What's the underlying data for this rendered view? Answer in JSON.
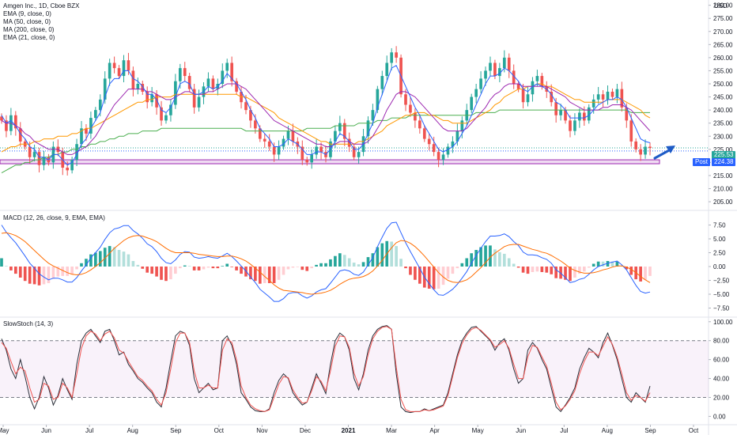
{
  "legend": {
    "main_title": "Amgen Inc., 1D, Cboe BZX",
    "ema9": "EMA (9, close, 0)",
    "ma50": "MA (50, close, 0)",
    "ma200": "MA (200, close, 0)",
    "ema21": "EMA (21, close, 0)",
    "macd": "MACD (12, 26, close, 9, EMA, EMA)",
    "stoch": "SlowStoch (14, 3)"
  },
  "currency": "USD",
  "tags": {
    "last_price": "225.53",
    "post_label": "Post",
    "post_price": "224.38"
  },
  "colors": {
    "up": "#26a69a",
    "down": "#ef5350",
    "ema9": "#2962ff",
    "ma50": "#ff9800",
    "ma200": "#4caf50",
    "ema21": "#9c27b0",
    "zone_fill": "#e1bee7",
    "zone_border": "#9c27b0",
    "arrow": "#1e5bc6"
  },
  "chart_data": {
    "type": "candlestick",
    "x_ticks": [
      "May",
      "Jun",
      "Jul",
      "Aug",
      "Sep",
      "Oct",
      "Nov",
      "Dec",
      "2021",
      "Mar",
      "Apr",
      "May",
      "Jun",
      "Jul",
      "Aug",
      "Sep",
      "Oct"
    ],
    "price_panel": {
      "ylim": [
        202,
        282
      ],
      "y_ticks": [
        205,
        210,
        215,
        220,
        225,
        230,
        235,
        240,
        245,
        250,
        255,
        260,
        265,
        270,
        275,
        280
      ],
      "support_zone": [
        219.5,
        221
      ],
      "last_price": 225.53,
      "post_price": 224.38,
      "closes": [
        236,
        232,
        238,
        233,
        228,
        226,
        222,
        224,
        219,
        222,
        220,
        226,
        224,
        218,
        217,
        221,
        227,
        233,
        231,
        237,
        240,
        244,
        252,
        258,
        256,
        253,
        259,
        255,
        248,
        250,
        247,
        243,
        246,
        241,
        236,
        238,
        242,
        251,
        256,
        253,
        248,
        241,
        245,
        249,
        252,
        248,
        250,
        255,
        258,
        251,
        247,
        243,
        240,
        236,
        233,
        229,
        228,
        226,
        223,
        226,
        229,
        232,
        228,
        226,
        221,
        220,
        223,
        226,
        224,
        222,
        228,
        232,
        235,
        229,
        226,
        222,
        224,
        230,
        236,
        240,
        248,
        253,
        258,
        262,
        260,
        246,
        242,
        239,
        236,
        233,
        229,
        227,
        224,
        221,
        223,
        226,
        228,
        232,
        236,
        240,
        245,
        248,
        252,
        255,
        258,
        253,
        256,
        260,
        255,
        250,
        248,
        243,
        246,
        251,
        253,
        249,
        247,
        243,
        238,
        240,
        236,
        232,
        236,
        239,
        236,
        241,
        244,
        246,
        244,
        247,
        245,
        248,
        241,
        236,
        228,
        225,
        223,
        226,
        225.53
      ],
      "ema9": [
        238,
        235,
        236,
        234,
        231,
        229,
        226,
        225,
        222,
        222,
        221,
        223,
        223,
        221,
        219,
        220,
        223,
        227,
        229,
        233,
        236,
        239,
        245,
        250,
        252,
        252,
        255,
        255,
        252,
        251,
        249,
        246,
        246,
        244,
        240,
        239,
        241,
        245,
        250,
        251,
        250,
        246,
        246,
        247,
        249,
        248,
        249,
        251,
        254,
        252,
        250,
        247,
        244,
        240,
        237,
        233,
        231,
        229,
        226,
        226,
        227,
        229,
        228,
        227,
        225,
        223,
        223,
        224,
        224,
        223,
        225,
        228,
        231,
        230,
        228,
        225,
        225,
        227,
        231,
        235,
        241,
        246,
        251,
        256,
        257,
        253,
        249,
        245,
        241,
        238,
        234,
        231,
        228,
        225,
        224,
        225,
        226,
        228,
        231,
        234,
        238,
        242,
        246,
        250,
        253,
        253,
        254,
        256,
        255,
        253,
        251,
        248,
        247,
        249,
        250,
        249,
        248,
        246,
        243,
        242,
        240,
        237,
        237,
        237,
        237,
        238,
        240,
        242,
        243,
        244,
        244,
        245,
        244,
        241,
        237,
        233,
        229,
        228,
        227.5
      ],
      "ema21": [
        236,
        235,
        235,
        234,
        233,
        231,
        230,
        228,
        227,
        226,
        225,
        225,
        225,
        224,
        223,
        223,
        224,
        225,
        226,
        228,
        230,
        233,
        236,
        239,
        242,
        244,
        246,
        248,
        248,
        248,
        248,
        247,
        247,
        246,
        245,
        244,
        244,
        245,
        246,
        247,
        247,
        246,
        246,
        246,
        247,
        247,
        248,
        249,
        250,
        250,
        250,
        249,
        248,
        246,
        244,
        242,
        240,
        238,
        236,
        235,
        234,
        233,
        232,
        231,
        230,
        229,
        228,
        227,
        227,
        226,
        226,
        227,
        228,
        228,
        228,
        227,
        227,
        227,
        228,
        230,
        233,
        236,
        240,
        243,
        246,
        247,
        247,
        246,
        245,
        243,
        241,
        239,
        237,
        235,
        233,
        232,
        232,
        232,
        232,
        233,
        235,
        237,
        239,
        241,
        244,
        246,
        247,
        249,
        250,
        250,
        250,
        249,
        249,
        249,
        249,
        249,
        249,
        248,
        247,
        246,
        245,
        243,
        242,
        241,
        240,
        240,
        240,
        240,
        241,
        241,
        242,
        242,
        242,
        241,
        240,
        238,
        236,
        234,
        232
      ],
      "ma50": [
        224,
        225,
        226,
        226,
        227,
        227,
        227,
        228,
        228,
        229,
        229,
        229,
        230,
        230,
        230,
        231,
        231,
        232,
        233,
        233,
        234,
        235,
        236,
        237,
        238,
        239,
        240,
        241,
        242,
        243,
        243,
        244,
        244,
        245,
        245,
        245,
        245,
        246,
        246,
        246,
        246,
        246,
        246,
        246,
        246,
        246,
        246,
        246,
        246,
        246,
        246,
        245,
        245,
        244,
        243,
        242,
        241,
        240,
        239,
        237,
        236,
        235,
        234,
        233,
        232,
        231,
        230,
        229,
        228,
        228,
        227,
        227,
        227,
        227,
        227,
        227,
        228,
        228,
        229,
        230,
        231,
        232,
        234,
        235,
        236,
        237,
        238,
        238,
        239,
        239,
        239,
        238,
        238,
        237,
        236,
        236,
        235,
        235,
        235,
        235,
        236,
        237,
        238,
        239,
        240,
        242,
        243,
        245,
        246,
        247,
        248,
        248,
        249,
        249,
        250,
        250,
        249,
        249,
        248,
        247,
        246,
        245,
        244,
        244,
        243,
        243,
        243,
        243,
        243,
        244,
        244,
        244,
        244,
        243,
        242,
        241,
        240,
        238,
        237
      ],
      "ma200": [
        216,
        217,
        218,
        219,
        219,
        220,
        220,
        221,
        221,
        222,
        222,
        223,
        223,
        224,
        224,
        225,
        225,
        226,
        226,
        227,
        227,
        228,
        228,
        229,
        229,
        230,
        230,
        231,
        231,
        231,
        232,
        232,
        232,
        232,
        233,
        233,
        233,
        233,
        233,
        233,
        233,
        233,
        233,
        233,
        233,
        233,
        233,
        233,
        233,
        233,
        233,
        233,
        232,
        232,
        232,
        232,
        232,
        232,
        232,
        232,
        232,
        232,
        232,
        232,
        232,
        233,
        233,
        233,
        233,
        233,
        233,
        234,
        234,
        234,
        234,
        234,
        235,
        235,
        235,
        235,
        236,
        236,
        236,
        237,
        237,
        237,
        237,
        238,
        238,
        238,
        238,
        238,
        238,
        238,
        238,
        238,
        238,
        238,
        238,
        238,
        238,
        239,
        239,
        239,
        239,
        239,
        240,
        240,
        240,
        240,
        240,
        240,
        240,
        240,
        240,
        240,
        240,
        240,
        240,
        240,
        240,
        240,
        240,
        240,
        240,
        240,
        240,
        240,
        240,
        240,
        240,
        240,
        240,
        240,
        239,
        239,
        239,
        239,
        239
      ]
    },
    "macd_panel": {
      "ylim": [
        -9,
        10
      ],
      "y_ticks": [
        -7.5,
        -5,
        -2.5,
        0,
        2.5,
        5,
        7.5
      ],
      "macd": [
        7.5,
        6.2,
        5.2,
        4.3,
        3.1,
        1.9,
        0.6,
        -0.3,
        -1.3,
        -1.9,
        -2.4,
        -2.1,
        -2.1,
        -2.4,
        -2.8,
        -2.8,
        -2.0,
        -0.8,
        0.3,
        1.6,
        2.5,
        3.5,
        4.9,
        6.1,
        6.8,
        7.0,
        7.4,
        7.4,
        6.5,
        5.9,
        5.1,
        4.1,
        3.6,
        2.7,
        1.5,
        0.7,
        0.5,
        1.2,
        2.2,
        2.7,
        2.6,
        1.7,
        1.5,
        1.6,
        1.8,
        1.6,
        1.5,
        1.9,
        2.4,
        1.8,
        1.0,
        0.1,
        -0.8,
        -1.9,
        -2.9,
        -4.1,
        -4.8,
        -5.5,
        -6.3,
        -6.3,
        -5.8,
        -4.9,
        -4.7,
        -4.7,
        -5.3,
        -5.7,
        -5.3,
        -4.6,
        -4.2,
        -4.0,
        -3.0,
        -1.9,
        -0.8,
        -0.6,
        -0.8,
        -1.4,
        -1.6,
        -1.0,
        0.3,
        1.6,
        3.6,
        5.3,
        6.9,
        7.9,
        8.0,
        6.1,
        4.3,
        2.7,
        1.2,
        -0.3,
        -1.9,
        -3.1,
        -4.2,
        -5.1,
        -5.2,
        -4.7,
        -4.1,
        -3.2,
        -2.1,
        -0.9,
        0.6,
        2.0,
        3.3,
        4.5,
        5.5,
        5.5,
        5.6,
        5.9,
        5.4,
        4.5,
        3.8,
        2.6,
        2.1,
        2.1,
        2.0,
        1.6,
        1.3,
        0.6,
        -0.6,
        -1.2,
        -2.0,
        -2.9,
        -2.7,
        -2.3,
        -2.1,
        -1.4,
        -0.6,
        0.0,
        0.3,
        0.6,
        0.8,
        1.0,
        0.3,
        -0.6,
        -2.0,
        -3.4,
        -4.5,
        -4.8,
        -4.6
      ],
      "signal": [
        6.0,
        6.1,
        5.9,
        5.6,
        5.1,
        4.5,
        3.7,
        2.9,
        2.1,
        1.3,
        0.6,
        0.1,
        -0.3,
        -0.7,
        -1.1,
        -1.4,
        -1.5,
        -1.4,
        -1.1,
        -0.6,
        0.0,
        0.7,
        1.5,
        2.4,
        3.3,
        4.0,
        4.7,
        5.2,
        5.5,
        5.6,
        5.5,
        5.2,
        4.9,
        4.5,
        3.9,
        3.3,
        2.8,
        2.5,
        2.5,
        2.5,
        2.5,
        2.4,
        2.2,
        2.1,
        2.0,
        1.9,
        1.8,
        1.8,
        1.9,
        1.9,
        1.7,
        1.4,
        1.0,
        0.4,
        -0.3,
        -1.0,
        -1.8,
        -2.5,
        -3.3,
        -3.9,
        -4.3,
        -4.4,
        -4.5,
        -4.6,
        -4.7,
        -4.9,
        -5.0,
        -4.9,
        -4.8,
        -4.6,
        -4.3,
        -3.8,
        -3.2,
        -2.7,
        -2.3,
        -2.1,
        -2.0,
        -1.8,
        -1.4,
        -0.8,
        0.1,
        1.1,
        2.3,
        3.4,
        4.3,
        4.7,
        4.6,
        4.2,
        3.6,
        2.8,
        1.9,
        0.9,
        -0.1,
        -1.1,
        -1.9,
        -2.5,
        -2.8,
        -2.9,
        -2.7,
        -2.4,
        -1.8,
        -1.0,
        -0.2,
        0.7,
        1.7,
        2.4,
        3.0,
        3.6,
        3.9,
        4.0,
        4.0,
        3.7,
        3.4,
        3.1,
        2.9,
        2.6,
        2.4,
        2.0,
        1.5,
        1.0,
        0.4,
        -0.3,
        -0.7,
        -1.0,
        -1.2,
        -1.2,
        -1.1,
        -0.9,
        -0.6,
        -0.4,
        -0.1,
        0.1,
        0.1,
        -0.1,
        -0.5,
        -1.1,
        -1.8,
        -2.4,
        -2.9
      ]
    },
    "stoch_panel": {
      "ylim": [
        -8,
        104
      ],
      "y_ticks": [
        0,
        20,
        40,
        60,
        80,
        100
      ],
      "bands": [
        20,
        80
      ],
      "k": [
        82,
        70,
        50,
        40,
        60,
        42,
        20,
        8,
        20,
        42,
        30,
        12,
        22,
        40,
        28,
        18,
        55,
        80,
        88,
        92,
        85,
        78,
        90,
        92,
        80,
        65,
        68,
        55,
        48,
        40,
        36,
        30,
        25,
        15,
        10,
        30,
        58,
        85,
        90,
        88,
        75,
        40,
        25,
        30,
        35,
        28,
        30,
        80,
        85,
        75,
        55,
        25,
        18,
        10,
        6,
        5,
        5,
        8,
        25,
        38,
        45,
        40,
        25,
        18,
        12,
        15,
        30,
        45,
        35,
        24,
        55,
        80,
        88,
        84,
        70,
        40,
        28,
        45,
        70,
        85,
        92,
        95,
        96,
        92,
        45,
        10,
        5,
        4,
        5,
        5,
        8,
        6,
        8,
        10,
        12,
        25,
        45,
        65,
        80,
        88,
        94,
        95,
        90,
        85,
        80,
        70,
        78,
        82,
        70,
        50,
        35,
        40,
        70,
        78,
        72,
        60,
        50,
        30,
        10,
        5,
        12,
        20,
        30,
        50,
        62,
        72,
        68,
        62,
        78,
        88,
        75,
        60,
        40,
        20,
        15,
        25,
        20,
        15,
        32
      ],
      "d": [
        78,
        72,
        58,
        45,
        52,
        48,
        30,
        15,
        18,
        35,
        32,
        18,
        20,
        35,
        30,
        20,
        45,
        72,
        85,
        90,
        87,
        80,
        87,
        90,
        83,
        70,
        67,
        58,
        50,
        42,
        38,
        32,
        27,
        18,
        12,
        25,
        50,
        78,
        88,
        88,
        78,
        48,
        30,
        30,
        33,
        30,
        30,
        70,
        82,
        78,
        60,
        32,
        20,
        12,
        8,
        6,
        5,
        7,
        20,
        34,
        42,
        41,
        28,
        20,
        14,
        15,
        27,
        42,
        37,
        27,
        48,
        74,
        85,
        84,
        73,
        46,
        32,
        42,
        65,
        82,
        90,
        94,
        95,
        92,
        52,
        18,
        7,
        5,
        5,
        5,
        7,
        6,
        7,
        9,
        11,
        22,
        42,
        62,
        77,
        86,
        92,
        94,
        91,
        86,
        81,
        73,
        76,
        80,
        72,
        55,
        40,
        40,
        63,
        75,
        73,
        63,
        53,
        35,
        15,
        7,
        11,
        18,
        27,
        45,
        58,
        68,
        68,
        64,
        74,
        84,
        76,
        63,
        45,
        25,
        17,
        22,
        20,
        16,
        25
      ]
    }
  }
}
